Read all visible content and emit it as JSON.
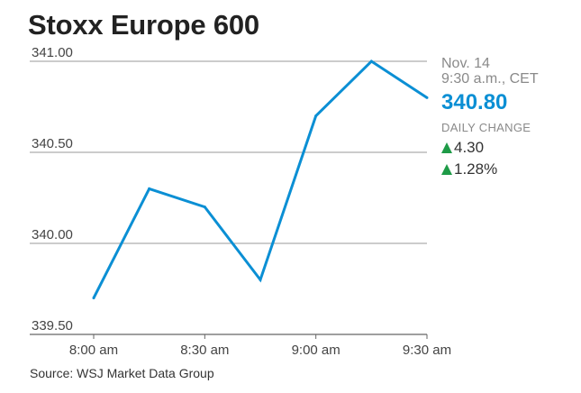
{
  "title": "Stoxx Europe 600",
  "source": "Source: WSJ Market Data Group",
  "info": {
    "date": "Nov. 14",
    "time": "9:30 a.m., CET",
    "value": "340.80",
    "change_label": "DAILY CHANGE",
    "change_abs": "4.30",
    "change_pct": "1.28%"
  },
  "colors": {
    "line": "#0b8fd4",
    "value": "#0b8fd4",
    "up": "#1e9b47",
    "grid": "#9a9a9a"
  },
  "chart_data": {
    "type": "line",
    "title": "Stoxx Europe 600",
    "xlabel": "",
    "ylabel": "",
    "x": [
      "8:00 am",
      "8:15 am",
      "8:30 am",
      "8:45 am",
      "9:00 am",
      "9:15 am",
      "9:30 am"
    ],
    "xticks": [
      "8:00 am",
      "8:30 am",
      "9:00 am",
      "9:30 am"
    ],
    "yticks": [
      "339.50",
      "340.00",
      "340.50",
      "341.00"
    ],
    "ylim": [
      339.5,
      341.0
    ],
    "grid": true,
    "series": [
      {
        "values": [
          339.7,
          340.3,
          340.2,
          339.8,
          340.7,
          341.0,
          340.8
        ]
      }
    ]
  }
}
